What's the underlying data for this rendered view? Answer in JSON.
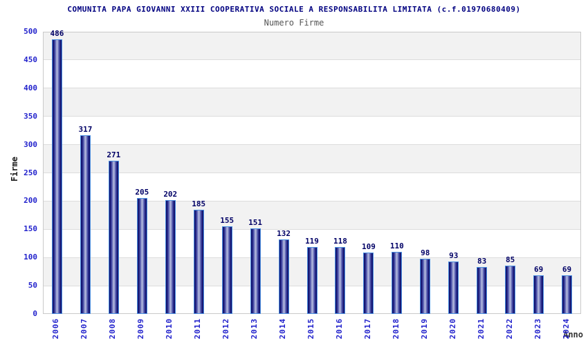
{
  "header": {
    "title": "COMUNITA PAPA GIOVANNI XXIII COOPERATIVA SOCIALE A RESPONSABILITA LIMITATA (c.f.01970680409)",
    "subtitle": "Numero Firme"
  },
  "chart_data": {
    "type": "bar",
    "title": "COMUNITA PAPA GIOVANNI XXIII COOPERATIVA SOCIALE A RESPONSABILITA LIMITATA (c.f.01970680409)",
    "subtitle": "Numero Firme",
    "xlabel": "Anno",
    "ylabel": "Firme",
    "categories": [
      "2006",
      "2007",
      "2008",
      "2009",
      "2010",
      "2011",
      "2012",
      "2013",
      "2014",
      "2015",
      "2016",
      "2017",
      "2018",
      "2019",
      "2020",
      "2021",
      "2022",
      "2023",
      "2024"
    ],
    "values": [
      486,
      317,
      271,
      205,
      202,
      185,
      155,
      151,
      132,
      119,
      118,
      109,
      110,
      98,
      93,
      83,
      85,
      69,
      69
    ],
    "ylim": [
      0,
      500
    ],
    "ytick_step": 50,
    "yticks": [
      0,
      50,
      100,
      150,
      200,
      250,
      300,
      350,
      400,
      450,
      500
    ],
    "grid": true,
    "legend": "none",
    "colors": {
      "title": "#000080",
      "subtitle": "#555555",
      "axis_tick": "#2222cc",
      "value_label": "#000066",
      "bar_border": "#4a8fe0",
      "bar_dark": "#141478",
      "bar_mid": "#3d42a0",
      "bar_light": "#b9c0e2",
      "band_gray": "#f2f2f2",
      "band_white": "#ffffff",
      "gridline": "#dcdcdc",
      "plot_border": "#c9c9c9",
      "xlabel_color": "#333333",
      "ylabel_color": "#1a1a1a"
    }
  }
}
